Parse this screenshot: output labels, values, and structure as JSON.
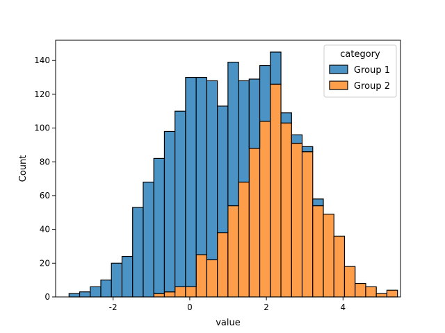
{
  "chart_data": {
    "type": "bar",
    "subtype": "stacked-histogram",
    "title": "",
    "xlabel": "value",
    "ylabel": "Count",
    "xlim": [
      -3.5,
      5.5
    ],
    "ylim": [
      0,
      152
    ],
    "xticks": [
      -2,
      0,
      2,
      4
    ],
    "xtick_labels": [
      "-2",
      "0",
      "2",
      "4"
    ],
    "yticks": [
      0,
      20,
      40,
      60,
      80,
      100,
      120,
      140
    ],
    "ytick_labels": [
      "0",
      "20",
      "40",
      "60",
      "80",
      "100",
      "120",
      "140"
    ],
    "bin_start": -3.15,
    "bin_width": 0.2765,
    "grid": false,
    "legend": {
      "title": "category",
      "position": "top-right"
    },
    "series": [
      {
        "name": "Group 2",
        "color": "#ff7f0e",
        "values": [
          0,
          0,
          0,
          0,
          0,
          0,
          0,
          0,
          2,
          3,
          6,
          6,
          25,
          22,
          38,
          54,
          68,
          88,
          104,
          126,
          103,
          91,
          86,
          54,
          49,
          36,
          18,
          8,
          6,
          2,
          4
        ]
      },
      {
        "name": "Group 1",
        "color": "#1f77b4",
        "values": [
          2,
          3,
          6,
          10,
          20,
          24,
          53,
          68,
          80,
          95,
          104,
          124,
          105,
          106,
          75,
          85,
          60,
          41,
          33,
          19,
          6,
          5,
          3,
          4,
          0,
          0,
          0,
          0,
          0,
          0,
          0
        ]
      }
    ]
  }
}
